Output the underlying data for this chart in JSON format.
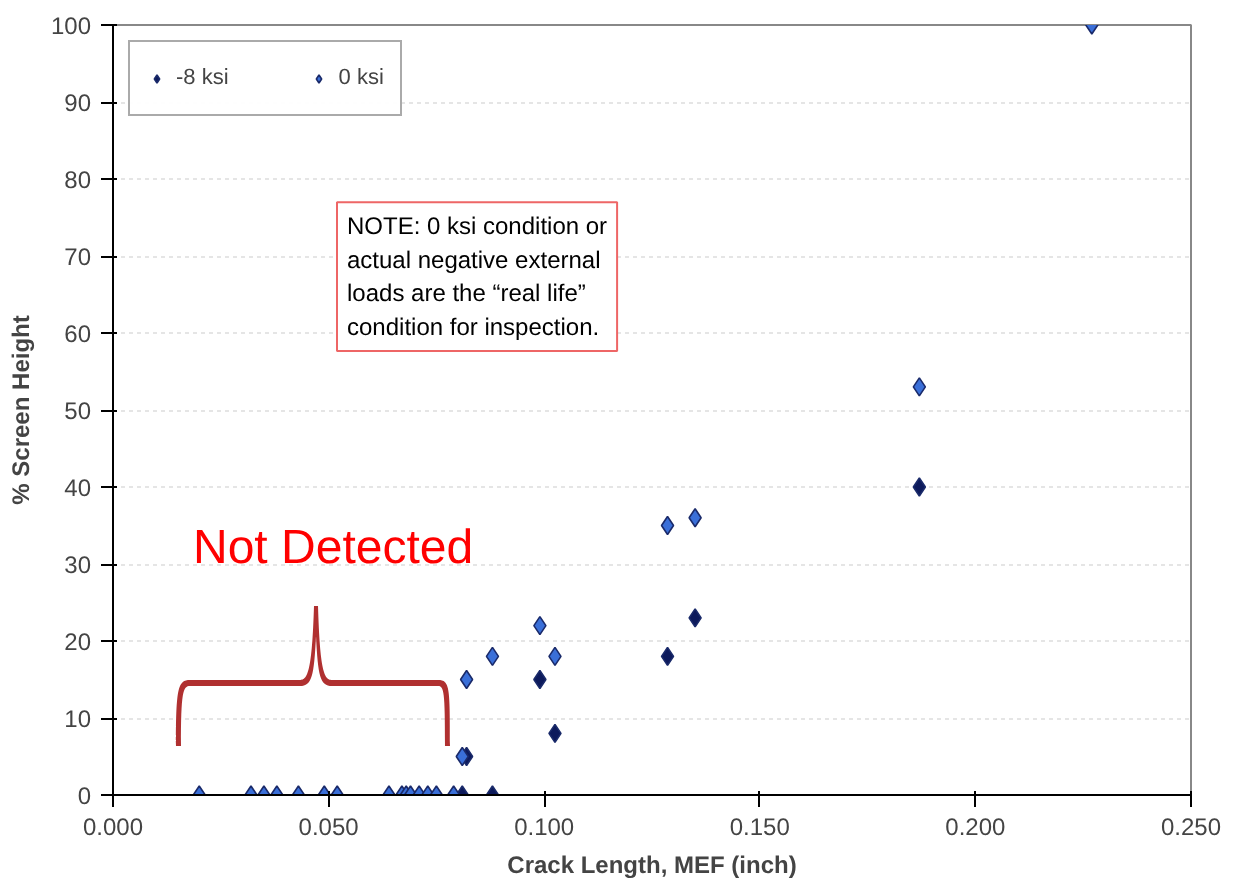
{
  "chart_data": {
    "type": "scatter",
    "xlabel": "Crack Length, MEF (inch)",
    "ylabel": "% Screen Height",
    "xlim": [
      0,
      0.25
    ],
    "ylim": [
      0,
      100
    ],
    "xticks": [
      {
        "value": 0,
        "label": "0.000"
      },
      {
        "value": 0.05,
        "label": "0.050"
      },
      {
        "value": 0.1,
        "label": "0.100"
      },
      {
        "value": 0.15,
        "label": "0.150"
      },
      {
        "value": 0.2,
        "label": "0.200"
      },
      {
        "value": 0.25,
        "label": "0.250"
      }
    ],
    "yticks": [
      0,
      10,
      20,
      30,
      40,
      50,
      60,
      70,
      80,
      90,
      100
    ],
    "grid": "y",
    "legend": "top left",
    "marker": "diamond",
    "series": [
      {
        "name": "-8 ksi",
        "color": "#0d1a5c",
        "x": [
          0.081,
          0.088,
          0.082,
          0.099,
          0.1025,
          0.1286,
          0.135,
          0.187
        ],
        "values": [
          0,
          0,
          5,
          15,
          8,
          18,
          23,
          40
        ]
      },
      {
        "name": "0 ksi",
        "color": "#3a6fd8",
        "x": [
          0.02,
          0.032,
          0.035,
          0.038,
          0.043,
          0.049,
          0.052,
          0.064,
          0.067,
          0.068,
          0.069,
          0.071,
          0.073,
          0.075,
          0.079,
          0.081,
          0.082,
          0.088,
          0.099,
          0.1025,
          0.1286,
          0.135,
          0.187,
          0.227
        ],
        "values": [
          0,
          0,
          0,
          0,
          0,
          0,
          0,
          0,
          0,
          0,
          0,
          0,
          0,
          0,
          0,
          5,
          15,
          18,
          22,
          18,
          35,
          36,
          53,
          100
        ]
      }
    ],
    "annotations": [
      "NOTE: 0 ksi condition or\nactual negative external\nloads are the “real life”\ncondition for inspection.",
      "Not Detected"
    ]
  }
}
